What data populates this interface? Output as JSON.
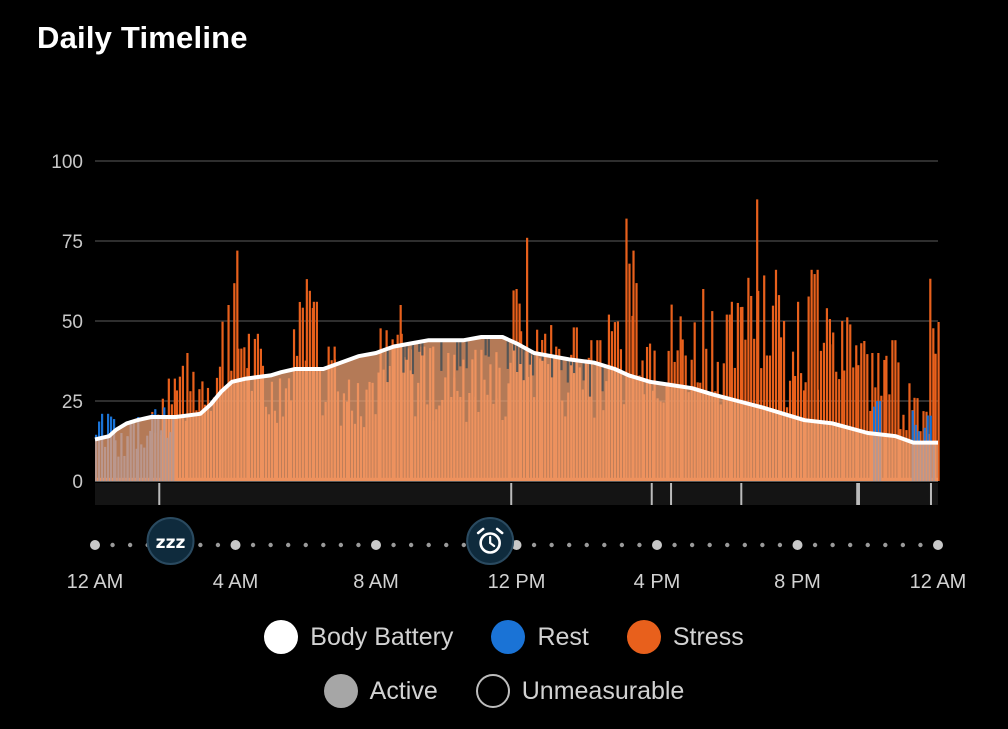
{
  "title": "Daily Timeline",
  "chart_data": {
    "type": "bar",
    "title": "Daily Timeline",
    "ylim": [
      0,
      100
    ],
    "y_ticks": [
      "0",
      "25",
      "50",
      "75",
      "100"
    ],
    "x_range_hours": [
      0,
      24
    ],
    "x_tick_labels": [
      {
        "hour": 0,
        "label": "12 AM"
      },
      {
        "hour": 4,
        "label": "4 AM"
      },
      {
        "hour": 8,
        "label": "8 AM"
      },
      {
        "hour": 12,
        "label": "12 PM"
      },
      {
        "hour": 16,
        "label": "4 PM"
      },
      {
        "hour": 20,
        "label": "8 PM"
      },
      {
        "hour": 24,
        "label": "12 AM"
      }
    ],
    "grid": true,
    "legend_position": "bottom",
    "series": [
      {
        "name": "Body Battery",
        "type": "line",
        "color": "#ffffff",
        "points": [
          [
            0,
            13
          ],
          [
            0.4,
            14
          ],
          [
            0.6,
            16
          ],
          [
            0.9,
            18
          ],
          [
            1.2,
            19
          ],
          [
            1.6,
            20
          ],
          [
            2.3,
            20
          ],
          [
            3.0,
            21
          ],
          [
            3.3,
            24
          ],
          [
            3.6,
            28
          ],
          [
            3.9,
            31
          ],
          [
            4.3,
            32
          ],
          [
            5.0,
            33
          ],
          [
            5.3,
            34
          ],
          [
            5.7,
            35
          ],
          [
            6.5,
            35
          ],
          [
            7.0,
            37
          ],
          [
            7.5,
            39
          ],
          [
            8.0,
            40
          ],
          [
            8.5,
            42
          ],
          [
            9.0,
            43
          ],
          [
            9.5,
            44
          ],
          [
            10.5,
            44
          ],
          [
            11.0,
            45
          ],
          [
            11.6,
            45
          ],
          [
            12.0,
            43
          ],
          [
            12.5,
            40
          ],
          [
            13.0,
            39
          ],
          [
            13.5,
            38
          ],
          [
            14.2,
            37
          ],
          [
            14.8,
            35
          ],
          [
            15.2,
            33
          ],
          [
            15.8,
            31
          ],
          [
            16.4,
            30
          ],
          [
            17.0,
            29
          ],
          [
            17.6,
            27
          ],
          [
            18.3,
            25
          ],
          [
            19.0,
            23
          ],
          [
            19.6,
            21
          ],
          [
            20.2,
            19
          ],
          [
            21.0,
            18
          ],
          [
            22.0,
            15
          ],
          [
            22.8,
            14
          ],
          [
            23.3,
            12
          ],
          [
            24,
            12
          ]
        ]
      },
      {
        "name": "Rest",
        "type": "bar",
        "color": "#1a73d6",
        "segments": [
          [
            0,
            0.55,
            21
          ],
          [
            0.55,
            0.9,
            15
          ],
          [
            0.9,
            1.2,
            19
          ],
          [
            1.2,
            1.6,
            20
          ],
          [
            1.6,
            2.25,
            23
          ],
          [
            22.15,
            22.35,
            25
          ],
          [
            23.25,
            23.85,
            22
          ]
        ]
      },
      {
        "name": "Stress",
        "type": "bar",
        "color": "#e8601c",
        "segments": [
          [
            0,
            24,
            1
          ],
          [
            1.6,
            1.9,
            29
          ],
          [
            1.9,
            2.3,
            32
          ],
          [
            2.3,
            2.6,
            36
          ],
          [
            2.6,
            3.1,
            40
          ],
          [
            3.1,
            3.6,
            44
          ],
          [
            3.6,
            3.85,
            55
          ],
          [
            3.85,
            4.05,
            72
          ],
          [
            4.05,
            4.35,
            58
          ],
          [
            4.35,
            4.75,
            46
          ],
          [
            4.75,
            5.15,
            36
          ],
          [
            5.15,
            5.55,
            40
          ],
          [
            5.55,
            5.8,
            48
          ],
          [
            5.8,
            6.0,
            64
          ],
          [
            6.0,
            6.2,
            70
          ],
          [
            6.2,
            6.45,
            56
          ],
          [
            6.45,
            6.8,
            42
          ],
          [
            6.8,
            7.2,
            38
          ],
          [
            7.2,
            7.7,
            36
          ],
          [
            7.7,
            8.1,
            40
          ],
          [
            8.1,
            8.5,
            48
          ],
          [
            8.5,
            8.7,
            55
          ],
          [
            8.7,
            9.0,
            46
          ],
          [
            9.0,
            9.6,
            42
          ],
          [
            9.6,
            10.2,
            40
          ],
          [
            10.2,
            10.8,
            38
          ],
          [
            10.8,
            11.4,
            41
          ],
          [
            11.4,
            11.8,
            38
          ],
          [
            11.8,
            12.1,
            60
          ],
          [
            12.1,
            12.3,
            76
          ],
          [
            12.3,
            12.7,
            50
          ],
          [
            12.7,
            13.1,
            54
          ],
          [
            13.1,
            13.6,
            42
          ],
          [
            13.6,
            14.1,
            48
          ],
          [
            14.1,
            14.6,
            44
          ],
          [
            14.6,
            15.1,
            52
          ],
          [
            15.1,
            15.3,
            82
          ],
          [
            15.3,
            15.6,
            72
          ],
          [
            15.6,
            15.9,
            56
          ],
          [
            15.9,
            16.3,
            48
          ],
          [
            16.3,
            16.7,
            56
          ],
          [
            16.7,
            17.2,
            54
          ],
          [
            17.2,
            17.7,
            60
          ],
          [
            17.7,
            18.1,
            52
          ],
          [
            18.1,
            18.4,
            56
          ],
          [
            18.4,
            18.65,
            80
          ],
          [
            18.65,
            18.85,
            88
          ],
          [
            18.85,
            19.1,
            78
          ],
          [
            19.1,
            19.5,
            66
          ],
          [
            19.5,
            19.9,
            50
          ],
          [
            19.9,
            20.2,
            56
          ],
          [
            20.2,
            20.55,
            66
          ],
          [
            20.55,
            20.9,
            54
          ],
          [
            20.9,
            21.3,
            50
          ],
          [
            21.3,
            21.7,
            54
          ],
          [
            21.7,
            22.1,
            46
          ],
          [
            22.1,
            22.5,
            40
          ],
          [
            22.5,
            22.9,
            44
          ],
          [
            22.9,
            23.3,
            32
          ],
          [
            23.3,
            23.75,
            26
          ],
          [
            23.75,
            23.9,
            72
          ],
          [
            23.9,
            24,
            50
          ]
        ]
      },
      {
        "name": "Active",
        "type": "legend",
        "color": "#a6a6a6"
      },
      {
        "name": "Unmeasurable",
        "type": "legend",
        "color": "#bdbdbd"
      }
    ],
    "event_markers": [
      {
        "hour": 2.15,
        "icon": "sleep-zzz-icon",
        "label": "zzz"
      },
      {
        "hour": 11.25,
        "icon": "alarm-clock-icon"
      }
    ],
    "tick_marks_hours": [
      1.83,
      11.85,
      15.85,
      16.4,
      18.4,
      21.7,
      21.75,
      23.8
    ]
  },
  "legend": [
    {
      "label": "Body Battery",
      "color": "#ffffff",
      "outline": false
    },
    {
      "label": "Rest",
      "color": "#1a73d6",
      "outline": false
    },
    {
      "label": "Stress",
      "color": "#e8601c",
      "outline": false
    },
    {
      "label": "Active",
      "color": "#a6a6a6",
      "outline": false
    },
    {
      "label": "Unmeasurable",
      "color": "transparent",
      "outline": true
    }
  ]
}
